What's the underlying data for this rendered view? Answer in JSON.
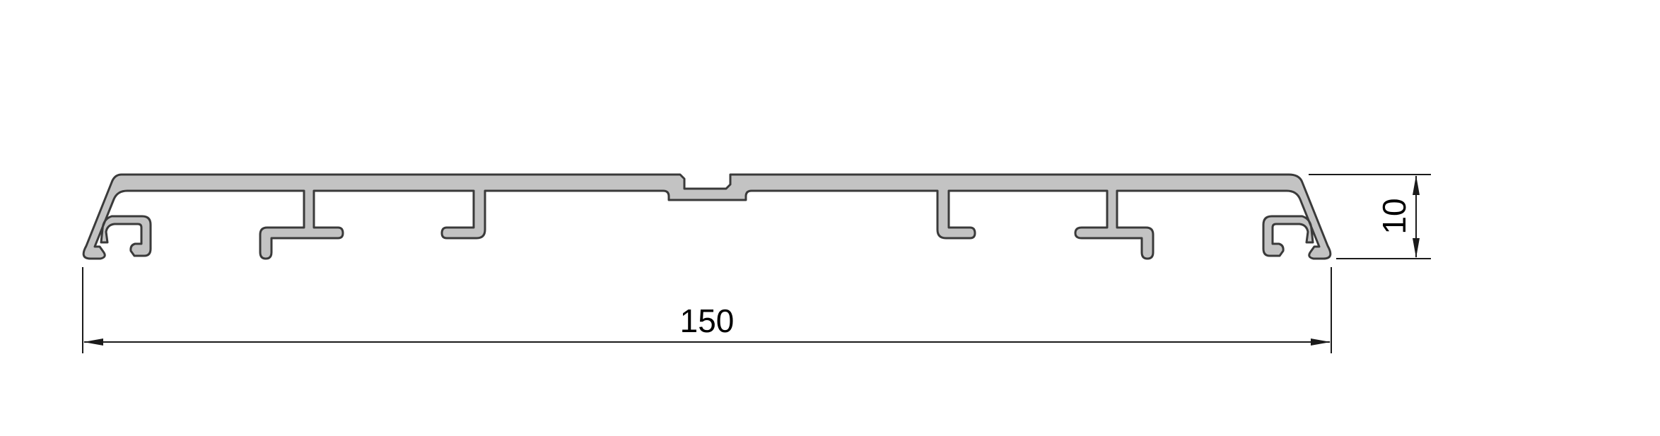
{
  "drawing": {
    "dimensions": {
      "width": {
        "value": "150"
      },
      "height": {
        "value": "10"
      }
    },
    "colors": {
      "profile_fill": "#c3c3c3",
      "profile_outline": "#3a3a3a",
      "dimension_lines": "#1a1a1a",
      "background": "#ffffff"
    }
  }
}
